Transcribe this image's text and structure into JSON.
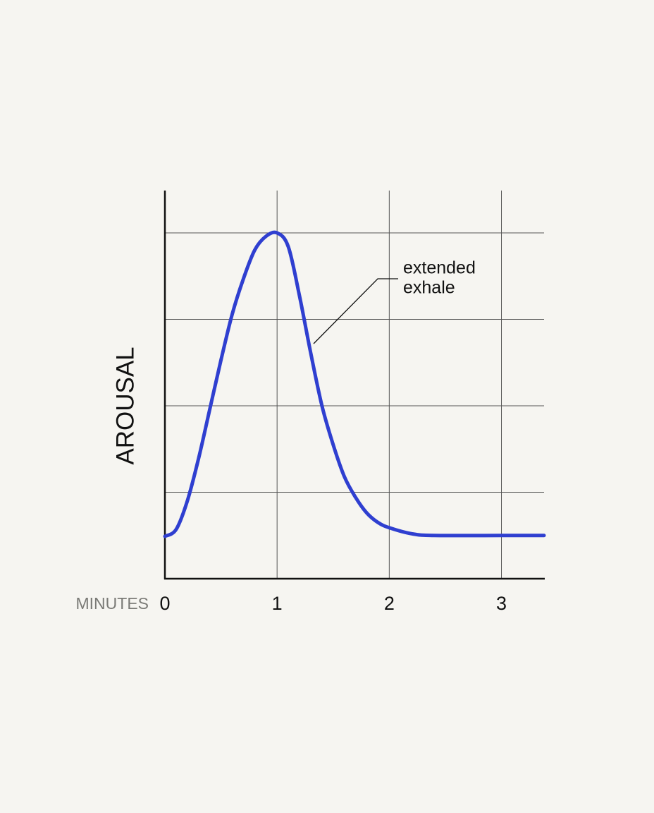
{
  "chart_data": {
    "type": "line",
    "y_label": "AROUSAL",
    "x_label": "MINUTES",
    "annotation": [
      "extended",
      "exhale"
    ],
    "x": [
      0,
      0.1,
      0.2,
      0.3,
      0.4,
      0.5,
      0.6,
      0.7,
      0.8,
      0.9,
      1.0,
      1.1,
      1.2,
      1.3,
      1.4,
      1.5,
      1.6,
      1.7,
      1.8,
      1.9,
      2.0,
      2.2,
      2.4,
      3.0,
      3.38
    ],
    "series": [
      {
        "color": "#2f3fd0",
        "values": [
          0.49,
          0.57,
          0.9,
          1.39,
          1.96,
          2.53,
          3.06,
          3.47,
          3.8,
          3.96,
          4.0,
          3.84,
          3.27,
          2.61,
          2.0,
          1.55,
          1.18,
          0.94,
          0.76,
          0.65,
          0.59,
          0.52,
          0.5,
          0.5,
          0.5
        ]
      }
    ],
    "xlim": [
      0,
      3.38
    ],
    "xticks": [
      0,
      1,
      2,
      3
    ],
    "ylim": [
      0,
      4.49
    ],
    "yticks": [
      1,
      2,
      3,
      4
    ],
    "grid": true
  }
}
